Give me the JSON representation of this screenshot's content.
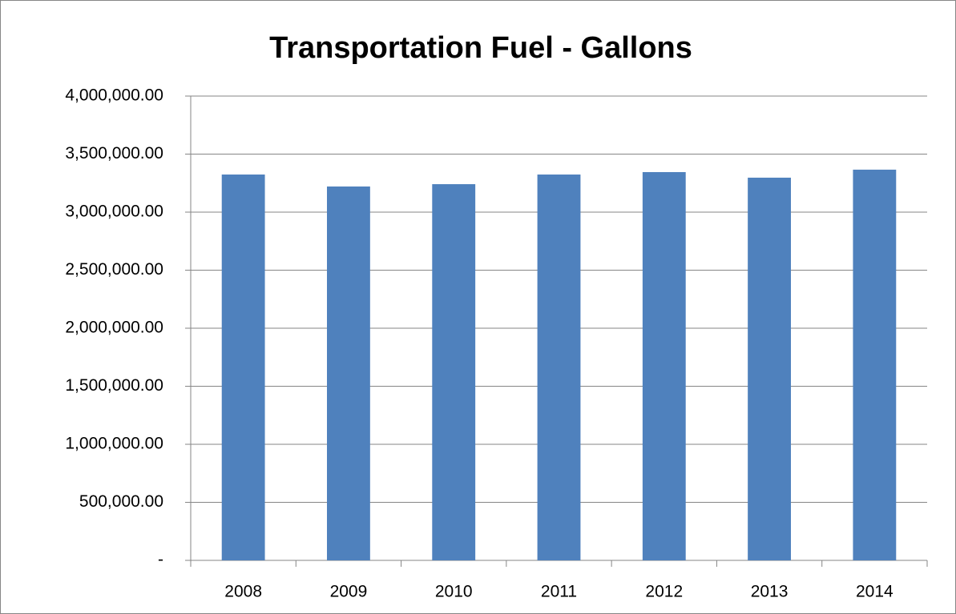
{
  "chart_data": {
    "type": "bar",
    "title": "Transportation Fuel - Gallons",
    "categories": [
      "2008",
      "2009",
      "2010",
      "2011",
      "2012",
      "2013",
      "2014"
    ],
    "values": [
      3324000,
      3221000,
      3241000,
      3324000,
      3345000,
      3297000,
      3366000
    ],
    "color": "#4f81bd",
    "ylim": [
      0,
      4000000
    ],
    "yticks": [
      {
        "value": 0,
        "label": "-"
      },
      {
        "value": 500000,
        "label": "500,000.00"
      },
      {
        "value": 1000000,
        "label": "1,000,000.00"
      },
      {
        "value": 1500000,
        "label": "1,500,000.00"
      },
      {
        "value": 2000000,
        "label": "2,000,000.00"
      },
      {
        "value": 2500000,
        "label": "2,500,000.00"
      },
      {
        "value": 3000000,
        "label": "3,000,000.00"
      },
      {
        "value": 3500000,
        "label": "3,500,000.00"
      },
      {
        "value": 4000000,
        "label": "4,000,000.00"
      }
    ],
    "grid": true
  }
}
